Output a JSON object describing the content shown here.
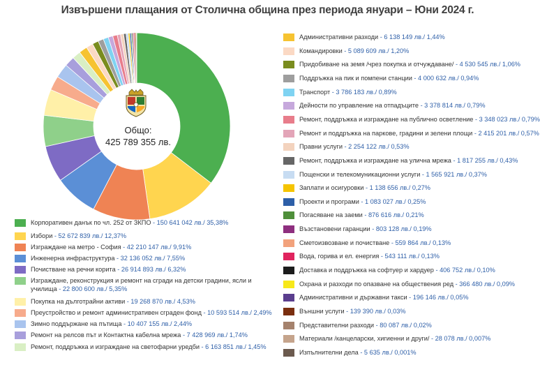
{
  "title": "Извършени плащания от Столична община през периода януари – Юни 2024 г.",
  "center": {
    "label": "Общо:",
    "total": "425 789 355 лв."
  },
  "chart_data": {
    "type": "pie",
    "title": "Извършени плащания от Столична община през периода януари – Юни 2024 г.",
    "unit": "лв.",
    "total": 425789355,
    "slices": [
      {
        "name": "Корпоративен данък по чл. 252 от ЗКПО",
        "value": 150641042,
        "value_text": "150 641 042 лв./ 35,38%",
        "percent": 35.38,
        "color": "#4caf50"
      },
      {
        "name": "Избори",
        "value": 52672839,
        "value_text": "52 672 839 лв./ 12,37%",
        "percent": 12.37,
        "color": "#ffd54f"
      },
      {
        "name": "Изграждане на метро - София",
        "value": 42210147,
        "value_text": "42 210 147 лв./ 9,91%",
        "percent": 9.91,
        "color": "#ef8354"
      },
      {
        "name": "Инженерна инфраструктура",
        "value": 32136052,
        "value_text": "32 136 052 лв./ 7,55%",
        "percent": 7.55,
        "color": "#5b8fd6"
      },
      {
        "name": "Почистване на речни корита",
        "value": 26914893,
        "value_text": "26 914 893 лв./ 6,32%",
        "percent": 6.32,
        "color": "#7e6bc4"
      },
      {
        "name": "Изграждане, реконструкция и ремонт на сгради на детски градини, ясли и училища",
        "value": 22800600,
        "value_text": "22 800 600 лв./ 5,35%",
        "percent": 5.35,
        "color": "#8fd08a"
      },
      {
        "name": "Покупка на дълготрайни активи",
        "value": 19268870,
        "value_text": "19 268 870 лв./ 4,53%",
        "percent": 4.53,
        "color": "#fff0a8"
      },
      {
        "name": "Преустройство и ремонт административен сграден фонд",
        "value": 10593514,
        "value_text": "10 593 514 лв./ 2,49%",
        "percent": 2.49,
        "color": "#f7ab8c"
      },
      {
        "name": "Зимно поддържане на пътища",
        "value": 10407155,
        "value_text": "10 407 155 лв./ 2,44%",
        "percent": 2.44,
        "color": "#a9c4ee"
      },
      {
        "name": "Ремонт на релсов път и Контактна кабелна мрежа",
        "value": 7428969,
        "value_text": "7 428 969 лв./ 1,74%",
        "percent": 1.74,
        "color": "#a89fdc"
      },
      {
        "name": "Ремонт, поддръжка и изграждане на светофарни уредби",
        "value": 6163851,
        "value_text": "6 163 851 лв./ 1,45%",
        "percent": 1.45,
        "color": "#d9efc4"
      },
      {
        "name": "Административни разходи",
        "value": 6138149,
        "value_text": "6 138 149 лв./ 1,44%",
        "percent": 1.44,
        "color": "#f6c331"
      },
      {
        "name": "Командировки",
        "value": 5089609,
        "value_text": "5 089 609 лв./ 1,20%",
        "percent": 1.2,
        "color": "#fbd9c4"
      },
      {
        "name": "Придобиване на земя /чрез покупка и отчуждаване/",
        "value": 4530545,
        "value_text": "4 530 545 лв./ 1,06%",
        "percent": 1.06,
        "color": "#7a8c1e"
      },
      {
        "name": "Поддръжка на пик и помпени станции",
        "value": 4000632,
        "value_text": "4 000 632 лв./ 0,94%",
        "percent": 0.94,
        "color": "#9e9e9e"
      },
      {
        "name": "Транспорт",
        "value": 3786183,
        "value_text": "3 786 183 лв./ 0,89%",
        "percent": 0.89,
        "color": "#7fd3f2"
      },
      {
        "name": "Дейности по управление на отпадъците",
        "value": 3378814,
        "value_text": "3 378 814 лв./ 0,79%",
        "percent": 0.79,
        "color": "#c6a8dc"
      },
      {
        "name": "Ремонт, поддръжка и изграждане на публично осветление",
        "value": 3348023,
        "value_text": "3 348 023 лв./ 0,79%",
        "percent": 0.79,
        "color": "#e87d8b"
      },
      {
        "name": "Ремонт и поддръжка на паркове, градини и зелени площи",
        "value": 2415201,
        "value_text": "2 415 201 лв./ 0,57%",
        "percent": 0.57,
        "color": "#e3a5b8"
      },
      {
        "name": "Правни услуги",
        "value": 2254122,
        "value_text": "2 254 122 лв./ 0,53%",
        "percent": 0.53,
        "color": "#f3d3be"
      },
      {
        "name": "Ремонт, поддръжка и изграждане на улична мрежа",
        "value": 1817255,
        "value_text": "1 817 255 лв./ 0,43%",
        "percent": 0.43,
        "color": "#666666"
      },
      {
        "name": "Пощенски и телекомуникационни услуги",
        "value": 1565921,
        "value_text": "1 565 921 лв./ 0,37%",
        "percent": 0.37,
        "color": "#c7dcf2"
      },
      {
        "name": "Заплати и осигуровки",
        "value": 1138656,
        "value_text": "1 138 656 лв./ 0,27%",
        "percent": 0.27,
        "color": "#f5c400"
      },
      {
        "name": "Проекти и програми",
        "value": 1083027,
        "value_text": "1 083 027 лв./ 0,25%",
        "percent": 0.25,
        "color": "#2d5fa8"
      },
      {
        "name": "Погасяване на заеми",
        "value": 876616,
        "value_text": "876 616 лв./ 0,21%",
        "percent": 0.21,
        "color": "#4f8f3a"
      },
      {
        "name": "Възстановени гаранции",
        "value": 803128,
        "value_text": "803 128 лв./ 0,19%",
        "percent": 0.19,
        "color": "#8e2f7f"
      },
      {
        "name": "Сметоизвозване и почистване",
        "value": 559864,
        "value_text": "559 864 лв./ 0,13%",
        "percent": 0.13,
        "color": "#f2a27c"
      },
      {
        "name": "Вода, горива и ел. енергия",
        "value": 543111,
        "value_text": "543 111 лв./ 0,13%",
        "percent": 0.13,
        "color": "#e0245e"
      },
      {
        "name": "Доставка и поддръжка на софтуер и хардуер",
        "value": 406752,
        "value_text": "406 752 лв./ 0,10%",
        "percent": 0.1,
        "color": "#1c1c1c"
      },
      {
        "name": "Охрана и разходи по опазване на обществения ред",
        "value": 366480,
        "value_text": "366 480 лв./ 0,09%",
        "percent": 0.09,
        "color": "#f7e81a"
      },
      {
        "name": "Административни и държавни такси",
        "value": 196146,
        "value_text": "196 146 лв./ 0,05%",
        "percent": 0.05,
        "color": "#5a3e8e"
      },
      {
        "name": "Външни услуги",
        "value": 139390,
        "value_text": "139 390 лв./ 0,03%",
        "percent": 0.03,
        "color": "#7a2e0e"
      },
      {
        "name": "Представителни разходи",
        "value": 80087,
        "value_text": "80 087 лв./ 0,02%",
        "percent": 0.02,
        "color": "#a5826d"
      },
      {
        "name": "Материали /канцеларски, хигиенни и други/",
        "value": 28078,
        "value_text": "28 078 лв./ 0,007%",
        "percent": 0.007,
        "color": "#c5a48c"
      },
      {
        "name": "Изпълнителни дела",
        "value": 5635,
        "value_text": "5 635 лв./ 0,001%",
        "percent": 0.001,
        "color": "#6b5a4e"
      }
    ]
  }
}
